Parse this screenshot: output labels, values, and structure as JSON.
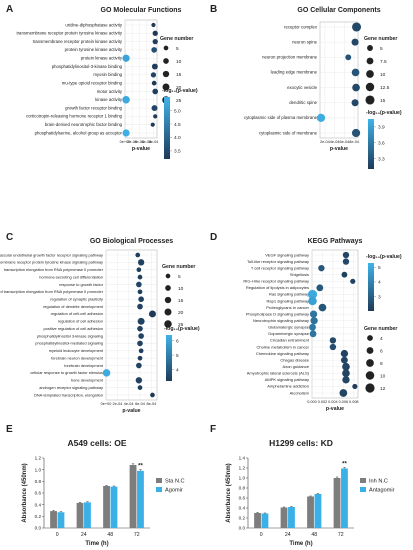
{
  "figure": {
    "panel_labels": [
      "A",
      "B",
      "C",
      "D",
      "E",
      "F"
    ]
  },
  "colors": {
    "dot_low": "#1f3a58",
    "dot_high": "#3fb3ea",
    "bar_grey": "#7d7d7d",
    "bar_blue": "#3ab0e6",
    "axis": "#444444",
    "grid": "#e6e6e6"
  },
  "chart_data": [
    {
      "panel": "A",
      "type": "scatter",
      "title": "GO Molecular Functions",
      "xlabel": "p-value",
      "x_ticks": [
        "0e+00",
        "2e-04",
        "4e-04",
        "6e-04",
        "8e-04"
      ],
      "xlim": [
        0,
        0.0009
      ],
      "categories": [
        "uridine-diphosphatase activity",
        "transmembrane receptor protein tyrosine kinase activity",
        "transmembrane receptor protein kinase activity",
        "protein tyrosine kinase activity",
        "protein kinase activity",
        "phosphatidylinositol-3-kinase binding",
        "myosin binding",
        "mu-type opioid receptor binding",
        "motor activity",
        "kinase activity",
        "growth factor receptor binding",
        "corticotropin-releasing hormone receptor 1 binding",
        "brain-derived neurotrophic factor binding",
        "phosphatidylserine, alcohol group as acceptor"
      ],
      "x": [
        0.0008,
        0.00085,
        0.00085,
        0.00082,
        3e-05,
        0.00084,
        0.0008,
        0.00082,
        0.00085,
        3e-05,
        0.00083,
        0.00085,
        0.00078,
        3e-05
      ],
      "size": [
        3,
        8,
        8,
        10,
        22,
        12,
        8,
        5,
        10,
        25,
        12,
        3,
        3,
        22
      ],
      "neglog_p": [
        3.2,
        3.2,
        3.3,
        3.6,
        5.2,
        3.3,
        3.4,
        3.2,
        3.3,
        5.3,
        3.4,
        3.2,
        3.1,
        5.4
      ],
      "size_legend_title": "Gene number",
      "size_legend": [
        5,
        10,
        15,
        20,
        25
      ],
      "color_legend_title": "-log₁₀(p-value)",
      "color_ticks": [
        5.0,
        4.5,
        4.0,
        3.5
      ],
      "color_range": [
        3.2,
        5.5
      ]
    },
    {
      "panel": "B",
      "type": "scatter",
      "title": "GO Cellular Components",
      "xlabel": "p-value",
      "x_ticks": [
        "2e-04",
        "4e-04",
        "6e-04",
        "8e-04"
      ],
      "xlim": [
        0.0001,
        0.00088
      ],
      "categories": [
        "receptor complex",
        "neuron spine",
        "neuron projection membrane",
        "leading edge membrane",
        "exocytic vesicle",
        "dendritic spine",
        "cytoplasmic side of plasma membrane",
        "cytoplasmic side of membrane"
      ],
      "x": [
        0.00085,
        0.00082,
        0.00068,
        0.00083,
        0.00084,
        0.00082,
        0.00012,
        0.00084
      ],
      "size": [
        15,
        8,
        5,
        10,
        10,
        8,
        12,
        12
      ],
      "neglog_p": [
        3.2,
        3.2,
        3.3,
        3.3,
        3.2,
        3.2,
        4.0,
        3.3
      ],
      "size_legend_title": "Gene number",
      "size_legend": [
        5.0,
        7.5,
        10.0,
        12.5,
        15.0
      ],
      "color_legend_title": "-log₁₀(p-value)",
      "color_ticks": [
        3.9,
        3.6,
        3.3
      ],
      "color_range": [
        3.1,
        4.05
      ]
    },
    {
      "panel": "C",
      "type": "scatter",
      "title": "GO Biological Processes",
      "xlabel": "p-value",
      "x_ticks": [
        "0e+00",
        "2e-04",
        "4e-04",
        "6e-04",
        "8e-04"
      ],
      "xlim": [
        0,
        0.0009
      ],
      "categories": [
        "vascular endothelial growth factor receptor signaling pathway",
        "transmembrane receptor protein tyrosine kinase signaling pathway",
        "transcription elongation from RNA polymerase II promoter",
        "hormone-secreting cell differentiation",
        "response to growth factor",
        "regulation of transcription elongation from RNA polymerase II promoter",
        "regulation of synaptic plasticity",
        "regulation of dendrite development",
        "regulation of cell-cell adhesion",
        "regulation of cell adhesion",
        "positive regulation of cell adhesion",
        "phosphatidylinositol 3-kinase signaling",
        "phosphatidylinositol-mediated signaling",
        "myeloid leukocyte development",
        "forebrain neuron development",
        "forebrain development",
        "cellular response to growth factor stimulus",
        "bone development",
        "androgen receptor signaling pathway",
        "DNA-templated transcription, elongation"
      ],
      "x": [
        0.00056,
        0.00062,
        0.00058,
        0.0006,
        0.00058,
        0.0006,
        0.00062,
        0.0006,
        0.00082,
        0.00062,
        0.0006,
        0.00062,
        0.0006,
        0.00062,
        0.0006,
        0.00058,
        1e-05,
        0.00058,
        0.0006,
        0.00082
      ],
      "size": [
        5,
        15,
        5,
        5,
        10,
        5,
        10,
        10,
        20,
        20,
        10,
        10,
        10,
        5,
        5,
        10,
        25,
        15,
        5,
        5
      ],
      "neglog_p": [
        3.3,
        3.4,
        3.3,
        3.3,
        3.5,
        3.3,
        3.4,
        3.4,
        3.2,
        3.4,
        3.4,
        3.4,
        3.4,
        3.3,
        3.3,
        3.4,
        6.2,
        3.4,
        3.3,
        3.2
      ],
      "size_legend_title": "Gene number",
      "size_legend": [
        5,
        10,
        15,
        20,
        25
      ],
      "color_legend_title": "-log₁₀(p-value)",
      "color_ticks": [
        6,
        5,
        4
      ],
      "color_range": [
        3.2,
        6.4
      ]
    },
    {
      "panel": "D",
      "type": "scatter",
      "title": "KEGG Pathways",
      "xlabel": "p-value",
      "x_ticks": [
        "0.000",
        "0.002",
        "0.004",
        "0.006",
        "0.008"
      ],
      "xlim": [
        0,
        0.0088
      ],
      "categories": [
        "VEGF signaling pathway",
        "Toll-like receptor signaling pathway",
        "T cell receptor signaling pathway",
        "Shigellosis",
        "RIG-I-like receptor signaling pathway",
        "Regulation of lipolysis in adipocytes",
        "Ras signaling pathway",
        "Rap1 signaling pathway",
        "Proteoglycans in cancer",
        "Phospholipase D signaling pathway",
        "Neurotrophin signaling pathway",
        "Glutamatergic synapse",
        "Dopaminergic synapse",
        "Circadian entrainment",
        "Choline metabolism in cancer",
        "Chemokine signaling pathway",
        "Chagas disease",
        "Axon guidance",
        "Amyotrophic lateral sclerosis (ALS)",
        "AMPK signaling pathway",
        "Amphetamine addiction",
        "Alcoholism"
      ],
      "x": [
        0.0065,
        0.0065,
        0.0018,
        0.0062,
        0.0078,
        0.0015,
        0.0001,
        0.0001,
        0.002,
        0.0003,
        0.0004,
        0.0001,
        0.0002,
        0.004,
        0.004,
        0.0062,
        0.0062,
        0.0065,
        0.0065,
        0.0065,
        0.0082,
        0.006
      ],
      "size": [
        5,
        5,
        5,
        4,
        3,
        6,
        12,
        10,
        8,
        7,
        7,
        6,
        6,
        5,
        5,
        7,
        6,
        8,
        8,
        7,
        3,
        8
      ],
      "neglog_p": [
        2.3,
        2.4,
        2.8,
        2.2,
        2.2,
        2.8,
        5.0,
        4.8,
        2.7,
        3.6,
        3.5,
        3.7,
        3.6,
        2.4,
        2.5,
        2.3,
        2.3,
        2.3,
        2.3,
        2.3,
        2.1,
        2.3
      ],
      "size_legend_title": "Gene number",
      "size_legend": [
        4,
        6,
        8,
        10,
        12
      ],
      "color_legend_title": "-log₁₀(p-value)",
      "color_ticks": [
        5,
        4,
        3
      ],
      "color_range": [
        2.0,
        5.3
      ]
    },
    {
      "panel": "E",
      "type": "bar",
      "title": "A549 cells: OE",
      "xlabel": "Time (h)",
      "ylabel": "Absorbance (450nm)",
      "categories": [
        "0",
        "24",
        "48",
        "72"
      ],
      "ylim": [
        0,
        1.2
      ],
      "y_ticks": [
        "0.0",
        "0.2",
        "0.4",
        "0.6",
        "0.8",
        "1.0",
        "1.2"
      ],
      "series": [
        {
          "name": "Sta N.C",
          "values": [
            0.29,
            0.43,
            0.72,
            1.08
          ]
        },
        {
          "name": "Agomir",
          "values": [
            0.27,
            0.44,
            0.71,
            0.98
          ]
        }
      ],
      "errors": [
        [
          0.01,
          0.01,
          0.01,
          0.02
        ],
        [
          0.01,
          0.01,
          0.01,
          0.02
        ]
      ],
      "annotation": "**"
    },
    {
      "panel": "F",
      "type": "bar",
      "title": "H1299 cells: KD",
      "xlabel": "Time (h)",
      "ylabel": "Absorbance (450nm)",
      "categories": [
        "0",
        "24",
        "48",
        "72"
      ],
      "ylim": [
        0,
        1.4
      ],
      "y_ticks": [
        "0.0",
        "0.2",
        "0.4",
        "0.6",
        "0.8",
        "1.0",
        "1.2",
        "1.4"
      ],
      "series": [
        {
          "name": "Inh N.C",
          "values": [
            0.3,
            0.41,
            0.63,
            1.0
          ]
        },
        {
          "name": "Antagomir",
          "values": [
            0.29,
            0.42,
            0.68,
            1.19
          ]
        }
      ],
      "errors": [
        [
          0.01,
          0.01,
          0.01,
          0.02
        ],
        [
          0.01,
          0.01,
          0.01,
          0.02
        ]
      ],
      "annotation": "**"
    }
  ]
}
